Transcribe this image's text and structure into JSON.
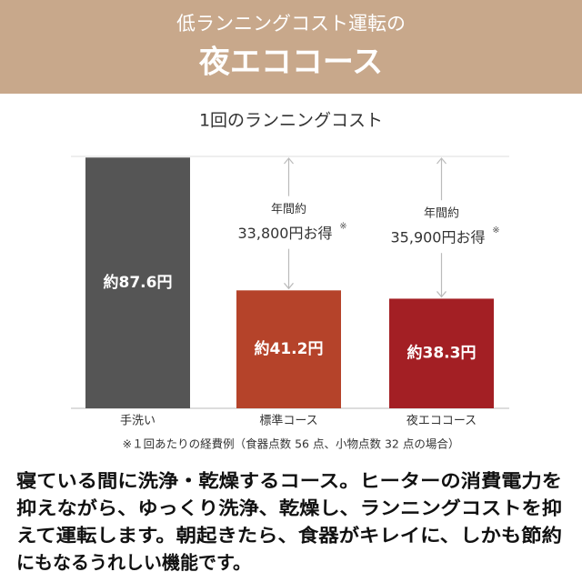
{
  "header": {
    "subtitle": "低ランニングコスト運転の",
    "title": "夜エココース"
  },
  "chart_data": {
    "type": "bar",
    "title": "1回のランニングコスト",
    "categories": [
      "手洗い",
      "標準コース",
      "夜エココース"
    ],
    "values": [
      87.6,
      41.2,
      38.3
    ],
    "value_labels": [
      "約87.6円",
      "約41.2円",
      "約38.3円"
    ],
    "colors": [
      "#555555",
      "#b5432a",
      "#a31f24"
    ],
    "ylim": [
      0,
      88
    ],
    "annotations": [
      {
        "category": "標準コース",
        "label": "年間約",
        "text": "33,800円お得",
        "note": "※"
      },
      {
        "category": "夜エココース",
        "label": "年間約",
        "text": "35,900円お得",
        "note": "※"
      }
    ],
    "footnote": "※１回あたりの経費例（食器点数 56 点、小物点数 32 点の場合）"
  },
  "description": {
    "lines": [
      "寝ている間に洗浄・乾燥するコース。ヒーターの消費電力を",
      "抑えながら、ゆっくり洗浄、乾燥し、ランニングコストを抑",
      "えて運転します。朝起きたら、食器がキレイに、しかも節約",
      "にもなるうれしい機能です。"
    ]
  }
}
